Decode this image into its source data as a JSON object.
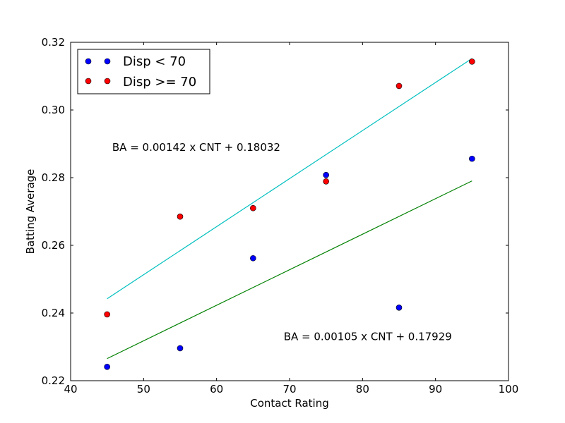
{
  "chart_data": {
    "type": "scatter",
    "title": "",
    "xlabel": "Contact Rating",
    "ylabel": "Batting Average",
    "xlim": [
      40,
      100
    ],
    "ylim": [
      0.22,
      0.32
    ],
    "xticks": [
      40,
      50,
      60,
      70,
      80,
      90,
      100
    ],
    "xtick_labels": [
      "40",
      "50",
      "60",
      "70",
      "80",
      "90",
      "100"
    ],
    "yticks": [
      0.22,
      0.24,
      0.26,
      0.28,
      0.3,
      0.32
    ],
    "ytick_labels": [
      "0.22",
      "0.24",
      "0.26",
      "0.28",
      "0.30",
      "0.32"
    ],
    "grid": false,
    "legend_position": "top-left",
    "series": [
      {
        "name": "Disp < 70",
        "color": "#0000ff",
        "marker": "circle",
        "points": [
          {
            "x": 45,
            "y": 0.2241
          },
          {
            "x": 55,
            "y": 0.2296
          },
          {
            "x": 65,
            "y": 0.2562
          },
          {
            "x": 75,
            "y": 0.2808
          },
          {
            "x": 85,
            "y": 0.2416
          },
          {
            "x": 95,
            "y": 0.2856
          }
        ]
      },
      {
        "name": "Disp >= 70",
        "color": "#ff0000",
        "marker": "circle",
        "points": [
          {
            "x": 45,
            "y": 0.2396
          },
          {
            "x": 55,
            "y": 0.2685
          },
          {
            "x": 65,
            "y": 0.271
          },
          {
            "x": 75,
            "y": 0.2789
          },
          {
            "x": 85,
            "y": 0.3071
          },
          {
            "x": 95,
            "y": 0.3143
          }
        ]
      }
    ],
    "fit_lines": [
      {
        "color": "#00bfbf",
        "slope": 0.00142,
        "intercept": 0.18032,
        "x_range": [
          45,
          95
        ]
      },
      {
        "color": "#008000",
        "slope": 0.00105,
        "intercept": 0.17929,
        "x_range": [
          45,
          95
        ]
      }
    ],
    "annotations": [
      {
        "text": "BA = 0.00142 x CNT + 0.18032",
        "x": 45.7,
        "y": 0.289
      },
      {
        "text": "BA = 0.00105 x CNT + 0.17929",
        "x": 69.2,
        "y": 0.233
      }
    ]
  }
}
